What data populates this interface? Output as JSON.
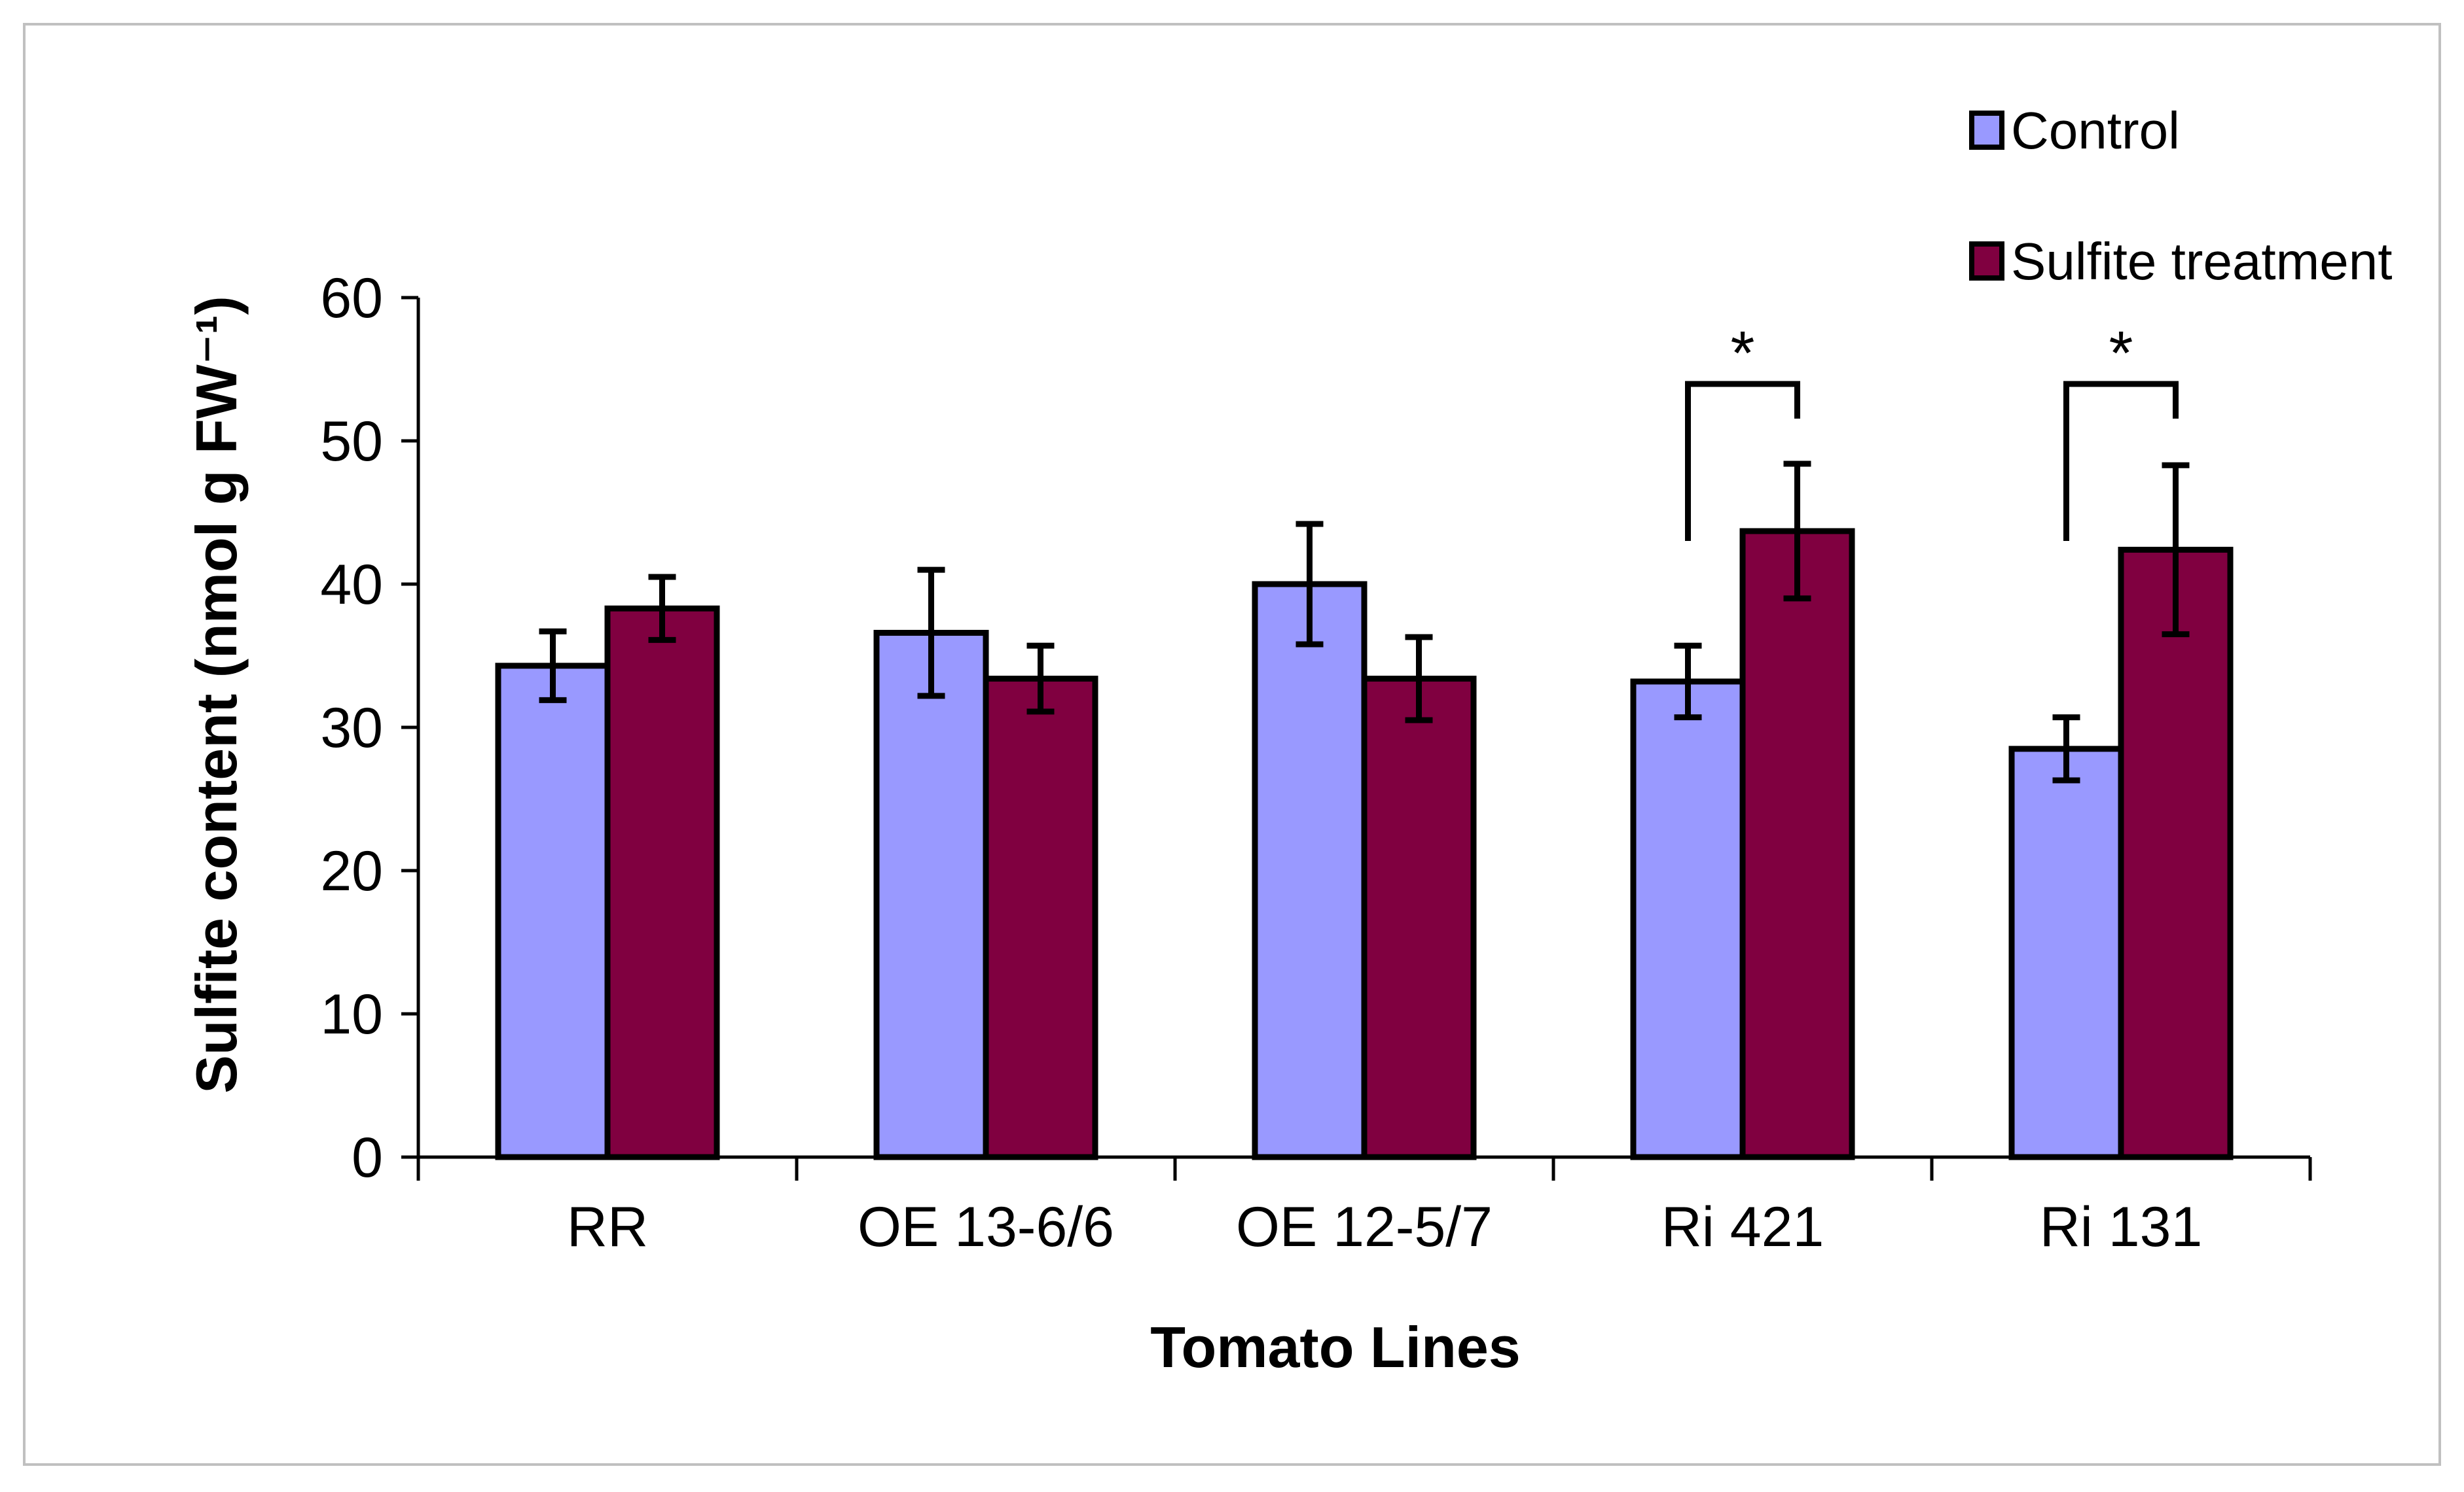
{
  "figure": {
    "background": "#FFFFFF",
    "border_color": "#C0C0C0"
  },
  "chart_data": {
    "type": "bar",
    "title": "",
    "xlabel": "Tomato Lines",
    "ylabel": "Sulfite content (nmol g FW⁻¹)",
    "categories": [
      "RR",
      "OE 13-6/6",
      "OE 12-5/7",
      "Ri 421",
      "Ri 131"
    ],
    "series": [
      {
        "name": "Control",
        "color": "#9999FF",
        "values": [
          34.3,
          36.6,
          40.0,
          33.2,
          28.5
        ],
        "errors": [
          2.4,
          4.4,
          4.2,
          2.5,
          2.2
        ]
      },
      {
        "name": "Sulfite treatment",
        "color": "#800040",
        "values": [
          38.3,
          33.4,
          33.4,
          43.7,
          42.4
        ],
        "errors": [
          2.2,
          2.3,
          2.9,
          4.7,
          5.9
        ]
      }
    ],
    "ylim": [
      0,
      60
    ],
    "yticks": [
      0,
      10,
      20,
      30,
      40,
      50,
      60
    ],
    "grid": false,
    "legend_position": "top-right",
    "significance": [
      {
        "category": "Ri 421",
        "label": "*"
      },
      {
        "category": "Ri 131",
        "label": "*"
      }
    ]
  }
}
